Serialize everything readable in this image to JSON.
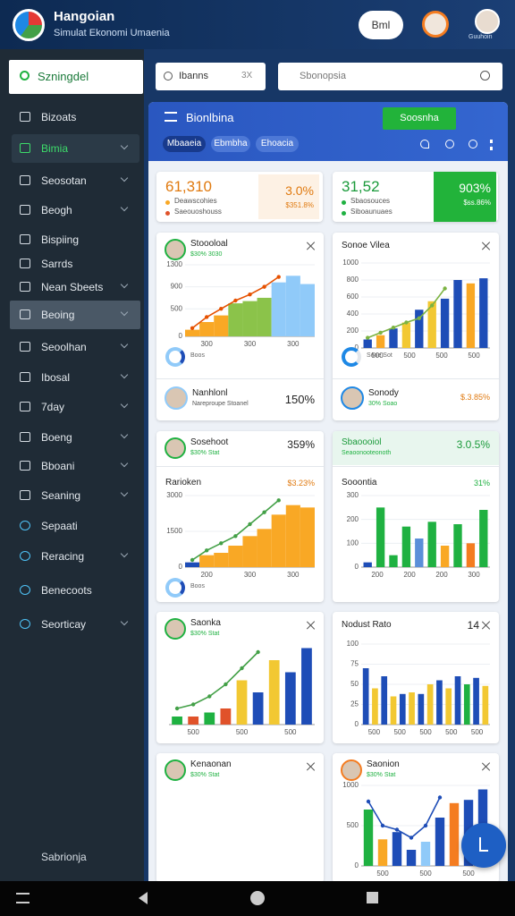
{
  "header": {
    "title": "Hangoian",
    "subtitle": "Simulat Ekonomi Umaenia",
    "button": "Bml",
    "user_label": "Guuhoin"
  },
  "sidebar": {
    "search": "Szningdel",
    "items": [
      "Bizoats",
      "Bimia",
      "Seosotan",
      "Beogh",
      "Bispiing",
      "Sarrds",
      "Nean Sbeets",
      "Beoing",
      "Seoolhan",
      "Ibosal",
      "7day",
      "Boeng",
      "Bboani",
      "Seaning",
      "Sepaati",
      "Reracing",
      "Benecoots",
      "Seorticay"
    ],
    "footer": "Sabrionja"
  },
  "search": {
    "left": "Ibanns",
    "left_hint": "3X",
    "right": "Sbonopsia"
  },
  "panel": {
    "title": "Bionlbina",
    "button": "Soosnha",
    "tabs": [
      "Mbaaeia",
      "Ebmbha",
      "Ehoacia"
    ]
  },
  "stats": [
    {
      "value": "61,310",
      "sub1": "Deawscohies",
      "sub2": "Saeouoshouss",
      "change": "3.0%",
      "change2": "$351.8%"
    },
    {
      "value": "31,52",
      "sub1": "Sbaosouces",
      "sub2": "Siboaunuaes",
      "change": "903%",
      "change2": "$ss.86%"
    }
  ],
  "cards": [
    {
      "title": "Stoooloal",
      "sub": "$30% 3030",
      "footer": "Boos",
      "row": {
        "name": "Nanhlonl",
        "sub": "Nareproupe Stoanel",
        "value": "150%"
      },
      "chart": {
        "ylim": [
          0,
          1300
        ],
        "yticks": [
          0,
          500,
          900,
          1300
        ],
        "xlabels": [
          "300",
          "300",
          "300"
        ],
        "area": true,
        "bars": [
          120,
          260,
          380,
          600,
          640,
          700,
          980,
          1100,
          950
        ],
        "bar_colors": [
          "#f9a825",
          "#f9a825",
          "#f9a825",
          "#8bc34a",
          "#8bc34a",
          "#8bc34a",
          "#90caf9",
          "#90caf9",
          "#90caf9"
        ],
        "line": [
          150,
          350,
          500,
          650,
          760,
          900,
          1080,
          null,
          null
        ],
        "line_color": "#e65100"
      }
    },
    {
      "title": "Sonoe Vilea",
      "footer": "Sone Sot",
      "row": {
        "name": "Sonody",
        "sub": "30% Soao",
        "value": "$.3.85%"
      },
      "chart": {
        "ylim": [
          0,
          1000
        ],
        "yticks": [
          0,
          200,
          400,
          600,
          800,
          1000
        ],
        "xlabels": [
          "500",
          "500",
          "500",
          "500"
        ],
        "area": false,
        "bars": [
          100,
          150,
          230,
          300,
          450,
          550,
          580,
          800,
          760,
          820
        ],
        "bar_colors": [
          "#1e4db7",
          "#f9a825",
          "#1e4db7",
          "#f2c832",
          "#1e4db7",
          "#f2c832",
          "#1e4db7",
          "#1e4db7",
          "#f9a825",
          "#1e4db7"
        ],
        "line": [
          120,
          180,
          240,
          300,
          350,
          500,
          700,
          null,
          null,
          null
        ],
        "line_color": "#7cb342"
      }
    },
    {
      "title": "Sosehoot",
      "sub": "$30% Stat",
      "value": "359%",
      "heading": "Rarioken",
      "heading_value": "$3.23%",
      "footer": "Boos",
      "chart": {
        "ylim": [
          0,
          3000
        ],
        "yticks": [
          0,
          1500,
          3000
        ],
        "xlabels": [
          "200",
          "300",
          "300"
        ],
        "area": true,
        "bars": [
          200,
          500,
          600,
          900,
          1300,
          1600,
          2200,
          2600,
          2500
        ],
        "bar_colors": [
          "#1e4db7",
          "#f9a825",
          "#f9a825",
          "#f9a825",
          "#f9a825",
          "#f9a825",
          "#f9a825",
          "#f9a825",
          "#f9a825"
        ],
        "line": [
          300,
          700,
          1000,
          1300,
          1800,
          2300,
          2800,
          null,
          null
        ],
        "line_color": "#43a047"
      }
    },
    {
      "title": "Sbaoooiol",
      "sub": "Seaoonooteonoth",
      "value": "3.0.5%",
      "heading": "Sooontia",
      "heading_value": "31%",
      "chart": {
        "ylim": [
          0,
          300
        ],
        "yticks": [
          0,
          100,
          200,
          300
        ],
        "xlabels": [
          "200",
          "200",
          "200",
          "300"
        ],
        "area": false,
        "bars": [
          20,
          250,
          50,
          170,
          120,
          190,
          90,
          180,
          100,
          240
        ],
        "bar_colors": [
          "#1e4db7",
          "#1fb141",
          "#1fb141",
          "#1fb141",
          "#5b8fd9",
          "#1fb141",
          "#f9a825",
          "#1fb141",
          "#f47c20",
          "#1fb141"
        ]
      }
    },
    {
      "title": "Saonka",
      "sub": "$30% Stat",
      "chart": {
        "ylim": [
          0,
          100
        ],
        "xlabels": [
          "500",
          "500",
          "500"
        ],
        "area": false,
        "bars": [
          10,
          10,
          15,
          20,
          55,
          40,
          80,
          65,
          95
        ],
        "bar_colors": [
          "#1fb141",
          "#e0522a",
          "#1fb141",
          "#e0522a",
          "#f2c832",
          "#1e4db7",
          "#f2c832",
          "#1e4db7",
          "#1e4db7"
        ],
        "line": [
          20,
          25,
          35,
          50,
          70,
          90,
          null,
          null,
          null
        ],
        "line_color": "#43a047"
      }
    },
    {
      "title": "Nodust Rato",
      "value": "14",
      "chart": {
        "ylim": [
          0,
          100
        ],
        "yticks": [
          0,
          25,
          50,
          75,
          100
        ],
        "xlabels": [
          "500",
          "500",
          "500",
          "500",
          "500"
        ],
        "area": false,
        "bars": [
          70,
          45,
          60,
          35,
          38,
          40,
          38,
          50,
          55,
          45,
          60,
          50,
          58,
          48
        ],
        "bar_colors": [
          "#1e4db7",
          "#f2c832",
          "#1e4db7",
          "#f2c832",
          "#1e4db7",
          "#f2c832",
          "#1e4db7",
          "#f2c832",
          "#1e4db7",
          "#f2c832",
          "#1e4db7",
          "#1fb141",
          "#1e4db7",
          "#f2c832"
        ]
      }
    },
    {
      "title": "Kenaonan",
      "sub": "$30% Stat"
    },
    {
      "title": "Saonion",
      "sub": "$30% Stat",
      "chart": {
        "ylim": [
          0,
          1000
        ],
        "yticks": [
          0,
          500,
          1000
        ],
        "xlabels": [
          "500",
          "500",
          "500"
        ],
        "area": false,
        "bars": [
          700,
          330,
          420,
          200,
          300,
          600,
          780,
          820,
          950
        ],
        "bar_colors": [
          "#1fb141",
          "#f9a825",
          "#1e4db7",
          "#1e4db7",
          "#90caf9",
          "#1e4db7",
          "#f47c20",
          "#1e4db7",
          "#1e4db7"
        ],
        "line": [
          800,
          500,
          450,
          350,
          500,
          850,
          null,
          null,
          null
        ],
        "line_color": "#1e4db7"
      }
    }
  ]
}
